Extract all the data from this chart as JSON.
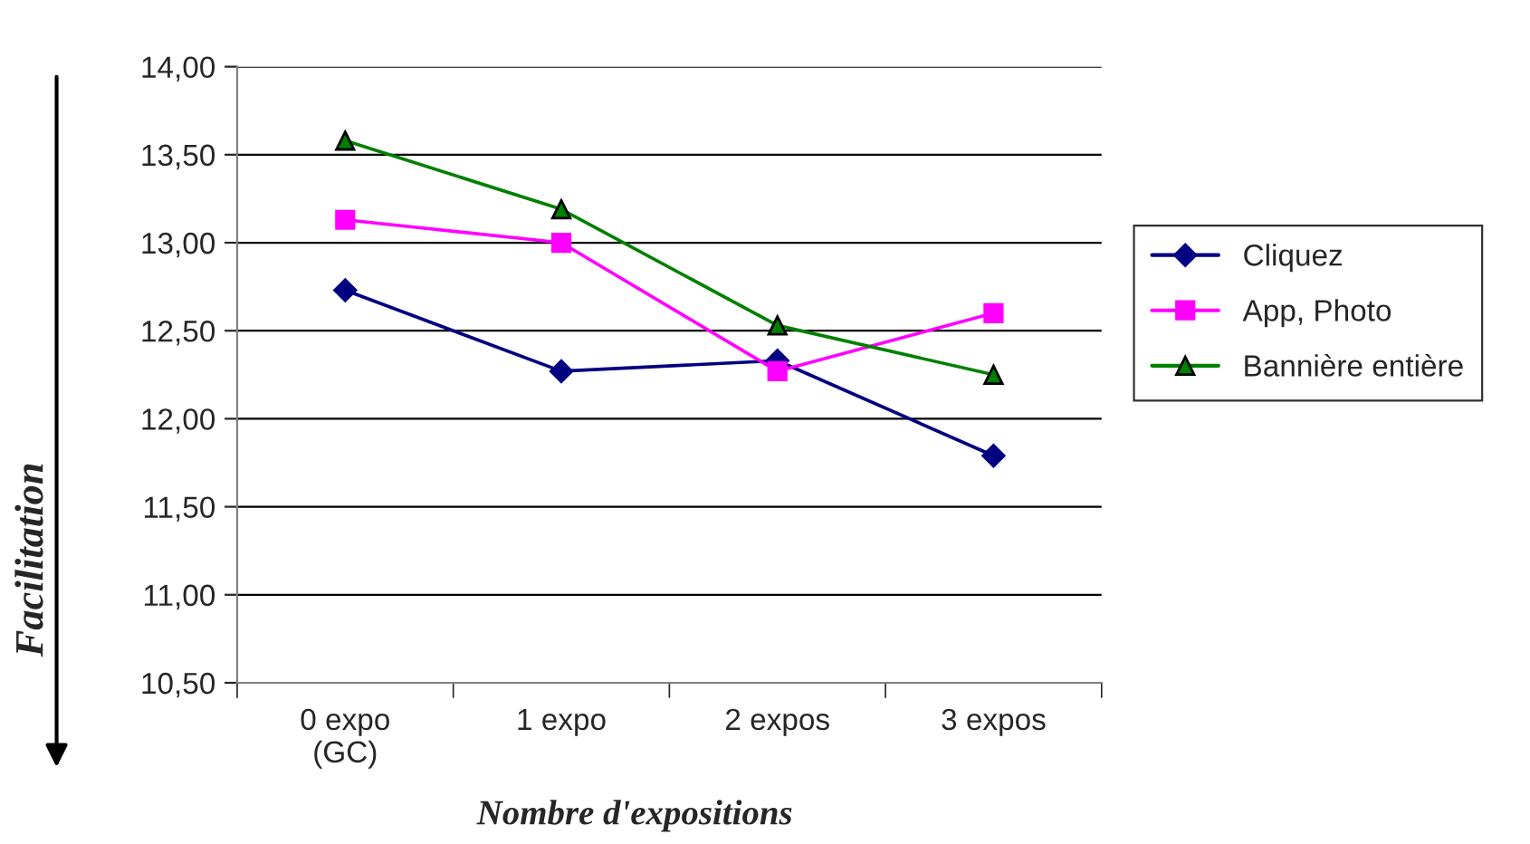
{
  "chart_data": {
    "type": "line",
    "xlabel": "Nombre d'expositions",
    "ylabel": "Facilitation",
    "categories": [
      "0 expo\n(GC)",
      "1 expo",
      "2 expos",
      "3 expos"
    ],
    "series": [
      {
        "name": "Cliquez",
        "color": "#000080",
        "marker": "diamond",
        "values": [
          12.73,
          12.27,
          12.33,
          11.79
        ]
      },
      {
        "name": "App, Photo",
        "color": "#ff00ff",
        "marker": "square",
        "values": [
          13.13,
          13.0,
          12.27,
          12.6
        ]
      },
      {
        "name": "Bannière entière",
        "color": "#008000",
        "marker": "triangle",
        "values": [
          13.58,
          13.19,
          12.53,
          12.25
        ]
      }
    ],
    "ylim": [
      10.5,
      14.0
    ],
    "yticks": [
      {
        "value": 10.5,
        "label": "10,50"
      },
      {
        "value": 11.0,
        "label": "11,00"
      },
      {
        "value": 11.5,
        "label": "11,50"
      },
      {
        "value": 12.0,
        "label": "12,00"
      },
      {
        "value": 12.5,
        "label": "12,50"
      },
      {
        "value": 13.0,
        "label": "13,00"
      },
      {
        "value": 13.5,
        "label": "13,50"
      },
      {
        "value": 14.0,
        "label": "14,00"
      }
    ],
    "grid": "y",
    "legend": "right",
    "line_style": "solid"
  }
}
